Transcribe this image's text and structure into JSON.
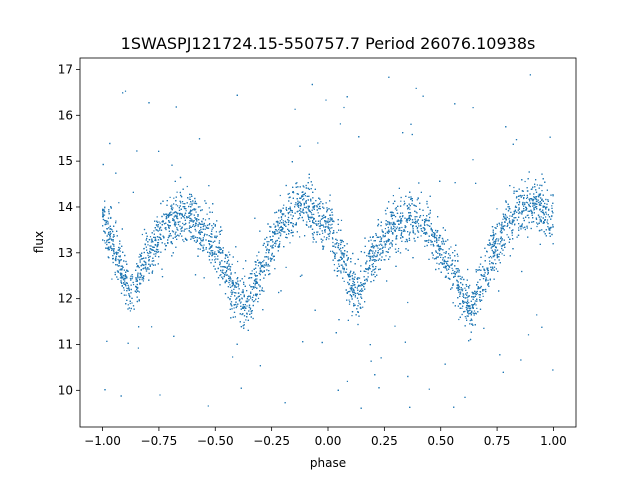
{
  "chart_data": {
    "type": "scatter",
    "title": "1SWASPJ121724.15-550757.7 Period 26076.10938s",
    "xlabel": "phase",
    "ylabel": "flux",
    "xlim": [
      -1.1,
      1.1
    ],
    "ylim": [
      9.2,
      17.25
    ],
    "xticks": [
      {
        "value": -1.0,
        "label": "−1.00"
      },
      {
        "value": -0.75,
        "label": "−0.75"
      },
      {
        "value": -0.5,
        "label": "−0.50"
      },
      {
        "value": -0.25,
        "label": "−0.25"
      },
      {
        "value": 0.0,
        "label": "0.00"
      },
      {
        "value": 0.25,
        "label": "0.25"
      },
      {
        "value": 0.5,
        "label": "0.50"
      },
      {
        "value": 0.75,
        "label": "0.75"
      },
      {
        "value": 1.0,
        "label": "1.00"
      }
    ],
    "yticks": [
      {
        "value": 10,
        "label": "10"
      },
      {
        "value": 11,
        "label": "11"
      },
      {
        "value": 12,
        "label": "12"
      },
      {
        "value": 13,
        "label": "13"
      },
      {
        "value": 14,
        "label": "14"
      },
      {
        "value": 15,
        "label": "15"
      },
      {
        "value": 16,
        "label": "16"
      },
      {
        "value": 17,
        "label": "17"
      }
    ],
    "grid": false,
    "marker_color": "#1f77b4",
    "light_curve": {
      "x": [
        -1.0,
        -0.95,
        -0.9,
        -0.87,
        -0.8,
        -0.75,
        -0.7,
        -0.65,
        -0.6,
        -0.55,
        -0.5,
        -0.45,
        -0.4,
        -0.37,
        -0.3,
        -0.25,
        -0.2,
        -0.15,
        -0.1,
        -0.05,
        0.0,
        0.05,
        0.1,
        0.13,
        0.2,
        0.25,
        0.3,
        0.35,
        0.4,
        0.45,
        0.5,
        0.55,
        0.6,
        0.63,
        0.7,
        0.75,
        0.8,
        0.85,
        0.9,
        0.95,
        1.0
      ],
      "y": [
        13.7,
        13.1,
        12.45,
        12.2,
        12.9,
        13.35,
        13.65,
        13.8,
        13.75,
        13.45,
        13.1,
        12.6,
        12.05,
        11.8,
        12.55,
        13.2,
        13.65,
        13.95,
        14.05,
        13.9,
        13.5,
        12.95,
        12.35,
        12.15,
        12.85,
        13.35,
        13.65,
        13.8,
        13.75,
        13.45,
        13.05,
        12.6,
        12.05,
        11.85,
        12.55,
        13.2,
        13.65,
        13.95,
        14.05,
        13.95,
        13.7
      ],
      "scatter": 0.28,
      "outlier_range": [
        9.5,
        16.9
      ]
    }
  }
}
